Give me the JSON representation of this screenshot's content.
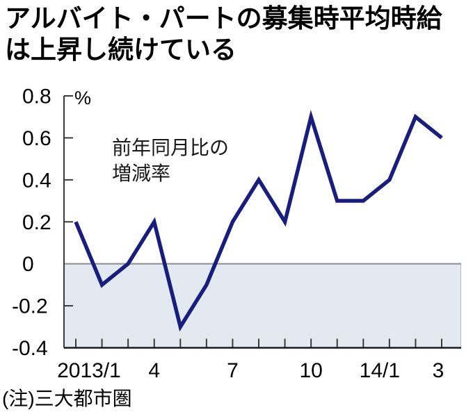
{
  "title": {
    "line1": "アルバイト・パートの募集時平均時給",
    "line2": "は上昇し続けている"
  },
  "annotation": {
    "line1": "前年同月比の",
    "line2": "増減率"
  },
  "note": "(注)三大都市圏",
  "colors": {
    "line": "#191d7c",
    "shade_below_zero": "#e2e9f1",
    "shade_edge": "#b4bcc6",
    "zero_line": "#8c8c8c",
    "axis": "#3a3a3a",
    "bottom_axis": "#1a1a1a",
    "text": "#000000"
  },
  "chart_data": {
    "type": "line",
    "title": "アルバイト・パートの募集時平均時給は上昇し続けている",
    "series_label": "前年同月比の増減率",
    "unit": "%",
    "x": [
      "2013/1",
      "2013/2",
      "2013/3",
      "2013/4",
      "2013/5",
      "2013/6",
      "2013/7",
      "2013/8",
      "2013/9",
      "2013/10",
      "2013/11",
      "2013/12",
      "2014/1",
      "2014/2",
      "2014/3"
    ],
    "values": [
      0.2,
      -0.1,
      0,
      0.2,
      -0.3,
      -0.1,
      0.2,
      0.4,
      0.2,
      0.7,
      0.3,
      0.3,
      0.4,
      0.7,
      0.6
    ],
    "ylim": [
      -0.4,
      0.8
    ],
    "y_ticks": [
      0.8,
      0.6,
      0.4,
      0.2,
      0,
      -0.2,
      -0.4
    ],
    "y_tick_labels": [
      "0.8",
      "0.6",
      "0.4",
      "0.2",
      "0",
      "-0.2",
      "-0.4"
    ],
    "x_tick_labels": [
      {
        "month_index": 0,
        "label": "2013/1"
      },
      {
        "month_index": 3,
        "label": "4"
      },
      {
        "month_index": 6,
        "label": "7"
      },
      {
        "month_index": 9,
        "label": "10"
      },
      {
        "month_index": 12,
        "label": "14/1"
      },
      {
        "month_index": 14,
        "label": "3"
      }
    ],
    "shade_below_zero": true,
    "grid": false,
    "legend_position": "none",
    "note": "(注)三大都市圏"
  }
}
